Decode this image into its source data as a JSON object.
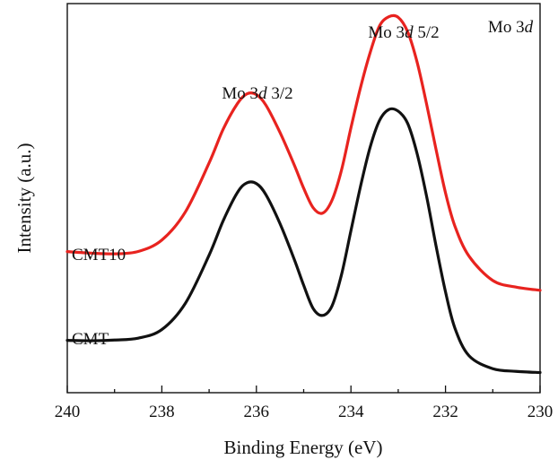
{
  "chart_data": {
    "type": "line",
    "title": "",
    "xlabel": "Binding Energy (eV)",
    "ylabel": "Intensity (a.u.)",
    "xlim": [
      240,
      230
    ],
    "x_reversed": true,
    "ylim": [
      0,
      1.12
    ],
    "y_ticks_labeled": false,
    "grid": false,
    "x_ticks": [
      240,
      238,
      236,
      234,
      232,
      230
    ],
    "x_tick_labels": [
      "240",
      "238",
      "236",
      "234",
      "232",
      "230"
    ],
    "annotations": {
      "mo3d32": "Mo 3d 3/2",
      "mo3d52": "Mo 3d 5/2",
      "mo3d": "Mo 3d"
    },
    "series": [
      {
        "name": "CMT10",
        "color": "#e8231f",
        "x": [
          240.0,
          239.5,
          239.0,
          238.5,
          238.0,
          237.5,
          237.0,
          236.7,
          236.4,
          236.2,
          236.0,
          235.8,
          235.5,
          235.2,
          235.0,
          234.8,
          234.6,
          234.4,
          234.2,
          234.0,
          233.8,
          233.6,
          233.4,
          233.2,
          233.0,
          232.8,
          232.6,
          232.4,
          232.2,
          232.0,
          231.8,
          231.5,
          231.0,
          230.5,
          230.0
        ],
        "values": [
          0.4137,
          0.4093,
          0.4072,
          0.4141,
          0.4476,
          0.5306,
          0.6738,
          0.7733,
          0.8481,
          0.8763,
          0.8741,
          0.8434,
          0.7628,
          0.6681,
          0.5996,
          0.5425,
          0.5265,
          0.5646,
          0.6527,
          0.7768,
          0.8934,
          0.9945,
          1.0744,
          1.1023,
          1.1007,
          1.0582,
          0.969,
          0.8464,
          0.7133,
          0.5861,
          0.488,
          0.3998,
          0.329,
          0.3095,
          0.3003
        ]
      },
      {
        "name": "CMT",
        "color": "#111111",
        "x": [
          240.0,
          239.5,
          239.0,
          238.5,
          238.0,
          237.5,
          237.0,
          236.7,
          236.4,
          236.2,
          236.0,
          235.8,
          235.5,
          235.2,
          235.0,
          234.8,
          234.6,
          234.4,
          234.2,
          234.0,
          233.8,
          233.6,
          233.4,
          233.2,
          233.0,
          232.8,
          232.6,
          232.4,
          232.2,
          232.0,
          231.8,
          231.5,
          231.0,
          230.5,
          230.0
        ],
        "values": [
          0.1534,
          0.1523,
          0.1545,
          0.1599,
          0.1852,
          0.2627,
          0.4034,
          0.505,
          0.5873,
          0.6154,
          0.6133,
          0.5809,
          0.4957,
          0.3913,
          0.315,
          0.247,
          0.2265,
          0.2546,
          0.3459,
          0.4752,
          0.6036,
          0.717,
          0.7971,
          0.8303,
          0.8255,
          0.7895,
          0.7007,
          0.5759,
          0.4304,
          0.2957,
          0.1889,
          0.1079,
          0.0704,
          0.0625,
          0.0591
        ]
      }
    ]
  }
}
